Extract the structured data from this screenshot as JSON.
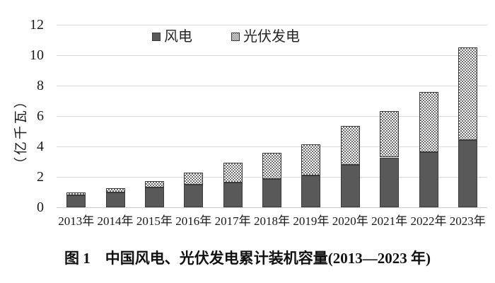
{
  "figure": {
    "caption": "图 1　中国风电、光伏发电累计装机容量(2013—2023 年)"
  },
  "chart_data": {
    "type": "bar",
    "stacked": true,
    "title": "",
    "xlabel": "",
    "ylabel": "（亿千瓦）",
    "ylim": [
      0,
      12
    ],
    "yticks": [
      0,
      2,
      4,
      6,
      8,
      10,
      12
    ],
    "grid": true,
    "legend_position": "top-center-inside",
    "categories": [
      "2013年",
      "2014年",
      "2015年",
      "2016年",
      "2017年",
      "2018年",
      "2019年",
      "2020年",
      "2021年",
      "2022年",
      "2023年"
    ],
    "series": [
      {
        "name": "风电",
        "style": "solid",
        "color": "#595959",
        "values": [
          0.77,
          0.96,
          1.29,
          1.49,
          1.64,
          1.84,
          2.1,
          2.81,
          3.28,
          3.65,
          4.41
        ]
      },
      {
        "name": "光伏发电",
        "style": "checker",
        "color": "#6e6e6e",
        "values": [
          0.19,
          0.28,
          0.43,
          0.77,
          1.3,
          1.74,
          2.04,
          2.53,
          3.06,
          3.93,
          6.09
        ]
      }
    ],
    "border_color": "#3a3a3a",
    "gridline_color": "#d9d9d9",
    "text_color": "#1a1a1a"
  }
}
